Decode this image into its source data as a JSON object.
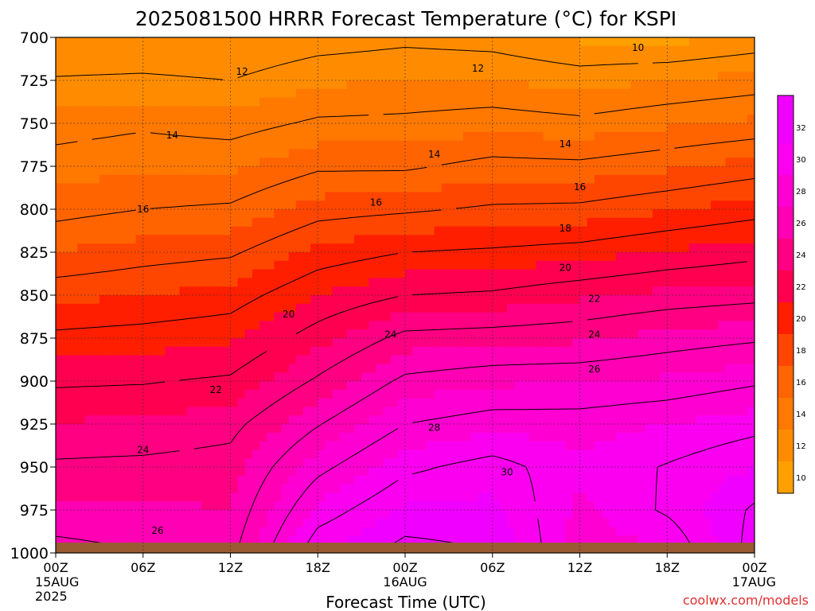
{
  "chart_data": {
    "type": "heatmap",
    "title": "2025081500 HRRR Forecast Temperature (°C) for KSPI",
    "xlabel": "Forecast Time (UTC)",
    "credit": "coolwx.com/models",
    "y_unit_hint": "hPa",
    "y_ticks": [
      700,
      725,
      750,
      775,
      800,
      825,
      850,
      875,
      900,
      925,
      950,
      975,
      1000
    ],
    "y_range": [
      700,
      1000
    ],
    "x_range_hours": [
      0,
      48
    ],
    "x_ticks": [
      {
        "hour": 0,
        "labels": [
          "00Z",
          "15AUG",
          "2025"
        ]
      },
      {
        "hour": 6,
        "labels": [
          "06Z"
        ]
      },
      {
        "hour": 12,
        "labels": [
          "12Z"
        ]
      },
      {
        "hour": 18,
        "labels": [
          "18Z"
        ]
      },
      {
        "hour": 24,
        "labels": [
          "00Z",
          "16AUG"
        ]
      },
      {
        "hour": 30,
        "labels": [
          "06Z"
        ]
      },
      {
        "hour": 36,
        "labels": [
          "12Z"
        ]
      },
      {
        "hour": 42,
        "labels": [
          "18Z"
        ]
      },
      {
        "hour": 48,
        "labels": [
          "00Z",
          "17AUG"
        ]
      }
    ],
    "colorbar": {
      "levels": [
        10,
        12,
        14,
        16,
        18,
        20,
        22,
        24,
        26,
        28,
        30,
        32
      ],
      "colors": [
        "#ffa000",
        "#ff8c00",
        "#ff7800",
        "#ff6400",
        "#ff4600",
        "#ff1e00",
        "#ff0050",
        "#ff0082",
        "#ff00b4",
        "#ff00d2",
        "#fb00f0",
        "#f000ff"
      ],
      "range": [
        9,
        34
      ]
    },
    "temperature_profiles": [
      {
        "hour": 0,
        "levels": [
          [
            1000,
            26.5
          ],
          [
            975,
            25.2
          ],
          [
            950,
            24.2
          ],
          [
            925,
            23.1
          ],
          [
            900,
            21.8
          ],
          [
            875,
            20.3
          ],
          [
            850,
            18.7
          ],
          [
            825,
            17.0
          ],
          [
            800,
            15.6
          ],
          [
            775,
            14.5
          ],
          [
            750,
            13.5
          ],
          [
            725,
            12.1
          ],
          [
            700,
            11.0
          ]
        ]
      },
      {
        "hour": 6,
        "levels": [
          [
            1000,
            26.0
          ],
          [
            975,
            25.2
          ],
          [
            950,
            24.3
          ],
          [
            925,
            23.2
          ],
          [
            900,
            21.9
          ],
          [
            875,
            20.5
          ],
          [
            850,
            19.0
          ],
          [
            825,
            17.5
          ],
          [
            800,
            16.0
          ],
          [
            775,
            14.8
          ],
          [
            750,
            13.8
          ],
          [
            725,
            12.2
          ],
          [
            700,
            11.0
          ]
        ]
      },
      {
        "hour": 12,
        "levels": [
          [
            1000,
            25.6
          ],
          [
            975,
            25.0
          ],
          [
            950,
            24.5
          ],
          [
            925,
            23.6
          ],
          [
            900,
            22.2
          ],
          [
            875,
            20.8
          ],
          [
            850,
            19.4
          ],
          [
            825,
            17.8
          ],
          [
            800,
            16.2
          ],
          [
            775,
            14.8
          ],
          [
            750,
            13.5
          ],
          [
            725,
            12.0
          ],
          [
            700,
            10.9
          ]
        ]
      },
      {
        "hour": 18,
        "levels": [
          [
            1000,
            31.0
          ],
          [
            975,
            29.3
          ],
          [
            950,
            27.6
          ],
          [
            925,
            25.9
          ],
          [
            900,
            24.2
          ],
          [
            875,
            22.6
          ],
          [
            850,
            21.0
          ],
          [
            825,
            19.3
          ],
          [
            800,
            17.5
          ],
          [
            775,
            15.8
          ],
          [
            750,
            14.2
          ],
          [
            725,
            12.8
          ],
          [
            700,
            11.4
          ]
        ]
      },
      {
        "hour": 24,
        "levels": [
          [
            1000,
            32.5
          ],
          [
            975,
            31.2
          ],
          [
            950,
            29.7
          ],
          [
            925,
            28.0
          ],
          [
            900,
            26.3
          ],
          [
            875,
            24.4
          ],
          [
            850,
            22.0
          ],
          [
            825,
            20.0
          ],
          [
            800,
            17.8
          ],
          [
            775,
            15.8
          ],
          [
            750,
            14.3
          ],
          [
            725,
            13.0
          ],
          [
            700,
            11.7
          ]
        ]
      },
      {
        "hour": 30,
        "levels": [
          [
            1000,
            32.0
          ],
          [
            975,
            31.3
          ],
          [
            950,
            30.5
          ],
          [
            925,
            28.6
          ],
          [
            900,
            26.8
          ],
          [
            875,
            24.6
          ],
          [
            850,
            22.2
          ],
          [
            825,
            20.2
          ],
          [
            800,
            18.2
          ],
          [
            775,
            16.4
          ],
          [
            750,
            14.6
          ],
          [
            725,
            13.0
          ],
          [
            700,
            11.5
          ]
        ]
      },
      {
        "hour": 36,
        "levels": [
          [
            1000,
            28.5
          ],
          [
            975,
            28.7
          ],
          [
            950,
            29.2
          ],
          [
            925,
            28.6
          ],
          [
            900,
            26.9
          ],
          [
            875,
            24.8
          ],
          [
            850,
            22.8
          ],
          [
            825,
            20.5
          ],
          [
            800,
            18.3
          ],
          [
            775,
            16.3
          ],
          [
            750,
            14.3
          ],
          [
            725,
            12.6
          ],
          [
            700,
            10.8
          ]
        ]
      },
      {
        "hour": 42,
        "levels": [
          [
            1000,
            28.8
          ],
          [
            975,
            30.2
          ],
          [
            950,
            30.1
          ],
          [
            925,
            29.0
          ],
          [
            900,
            27.2
          ],
          [
            875,
            25.4
          ],
          [
            850,
            23.3
          ],
          [
            825,
            21.1
          ],
          [
            800,
            18.9
          ],
          [
            775,
            16.8
          ],
          [
            750,
            14.8
          ],
          [
            725,
            13.0
          ],
          [
            700,
            10.6
          ]
        ]
      },
      {
        "hour": 48,
        "levels": [
          [
            1000,
            32.6
          ],
          [
            975,
            32.2
          ],
          [
            950,
            31.0
          ],
          [
            925,
            29.6
          ],
          [
            900,
            27.8
          ],
          [
            875,
            25.8
          ],
          [
            850,
            23.6
          ],
          [
            825,
            21.6
          ],
          [
            800,
            19.5
          ],
          [
            775,
            17.4
          ],
          [
            750,
            15.2
          ],
          [
            725,
            13.4
          ],
          [
            700,
            11.2
          ]
        ]
      }
    ],
    "contour_labels": [
      {
        "text": "10",
        "hour": 40.0,
        "p": 706
      },
      {
        "text": "12",
        "hour": 12.8,
        "p": 720
      },
      {
        "text": "12",
        "hour": 29.0,
        "p": 718
      },
      {
        "text": "14",
        "hour": 8.0,
        "p": 757
      },
      {
        "text": "14",
        "hour": 26.0,
        "p": 768
      },
      {
        "text": "14",
        "hour": 35.0,
        "p": 762
      },
      {
        "text": "16",
        "hour": 6.0,
        "p": 800
      },
      {
        "text": "16",
        "hour": 22.0,
        "p": 796
      },
      {
        "text": "16",
        "hour": 36.0,
        "p": 787
      },
      {
        "text": "18",
        "hour": 35.0,
        "p": 811
      },
      {
        "text": "20",
        "hour": 16.0,
        "p": 861
      },
      {
        "text": "20",
        "hour": 35.0,
        "p": 834
      },
      {
        "text": "22",
        "hour": 11.0,
        "p": 905
      },
      {
        "text": "22",
        "hour": 37.0,
        "p": 852
      },
      {
        "text": "24",
        "hour": 6.0,
        "p": 940
      },
      {
        "text": "24",
        "hour": 23.0,
        "p": 873
      },
      {
        "text": "24",
        "hour": 37.0,
        "p": 873
      },
      {
        "text": "26",
        "hour": 7.0,
        "p": 987
      },
      {
        "text": "26",
        "hour": 37.0,
        "p": 893
      },
      {
        "text": "28",
        "hour": 26.0,
        "p": 927
      },
      {
        "text": "30",
        "hour": 31.0,
        "p": 953
      }
    ]
  }
}
